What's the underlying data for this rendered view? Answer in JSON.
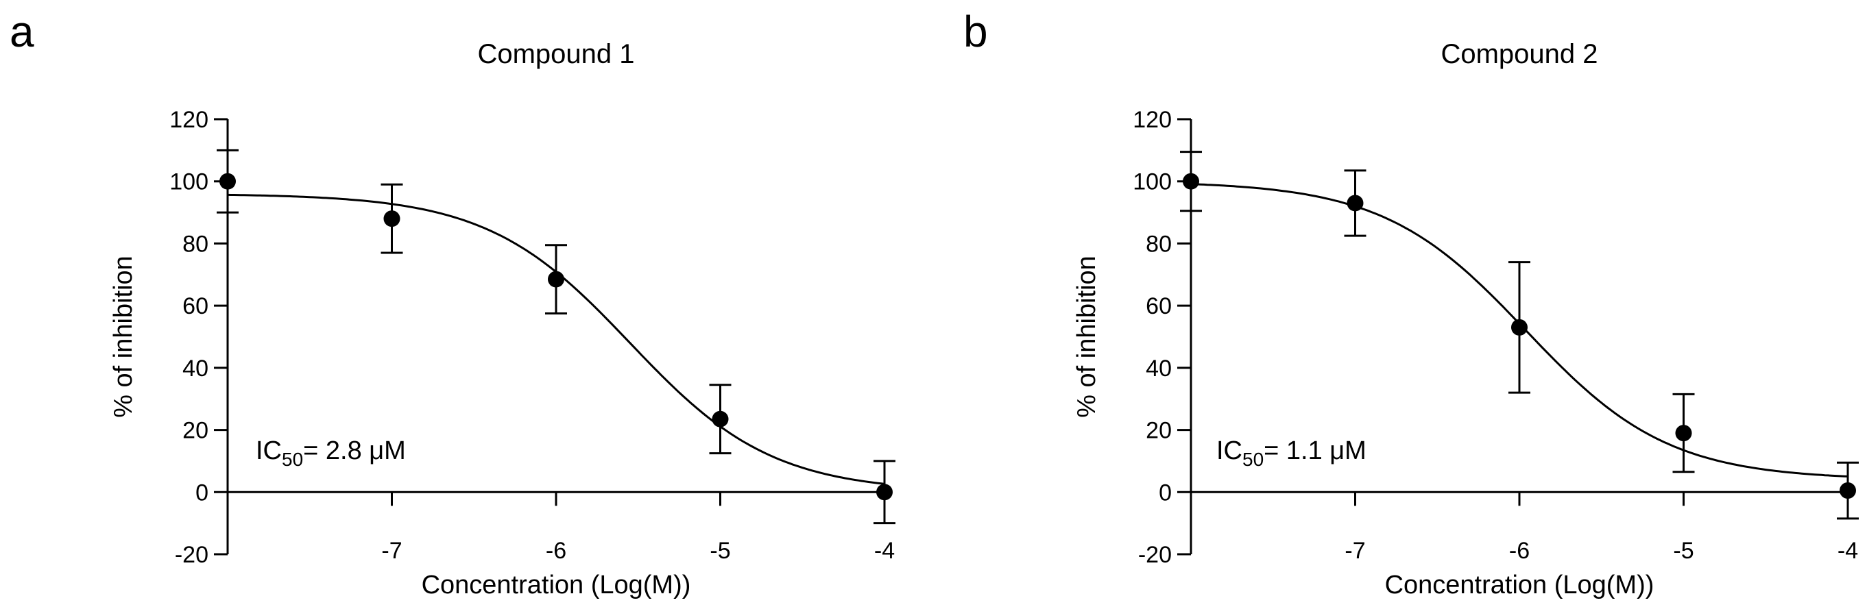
{
  "chart_data": [
    {
      "type": "scatter",
      "panel_label": "a",
      "title": "Compound 1",
      "xlabel": "Concentration (Log(M))",
      "ylabel": "% of inhibition",
      "xlim": [
        -8,
        -4
      ],
      "ylim": [
        -20,
        120
      ],
      "x_ticks": [
        -7,
        -6,
        -5,
        -4
      ],
      "y_ticks": [
        -20,
        0,
        20,
        40,
        60,
        80,
        100,
        120
      ],
      "annotation": {
        "prefix": "IC",
        "subscript": "50",
        "text": "= 2.8 μM"
      },
      "points": [
        {
          "x": -8,
          "y": 100,
          "err": 10
        },
        {
          "x": -7,
          "y": 88,
          "err": 11
        },
        {
          "x": -6,
          "y": 68.5,
          "err": 11
        },
        {
          "x": -5,
          "y": 23.5,
          "err": 11
        },
        {
          "x": -4,
          "y": 0,
          "err": 10
        }
      ],
      "fit": {
        "top": 96,
        "bottom": 0,
        "log_ic50": -5.55,
        "hill": 1
      }
    },
    {
      "type": "scatter",
      "panel_label": "b",
      "title": "Compound 2",
      "xlabel": "Concentration (Log(M))",
      "ylabel": "% of inhibition",
      "xlim": [
        -8,
        -4
      ],
      "ylim": [
        -20,
        120
      ],
      "x_ticks": [
        -7,
        -6,
        -5,
        -4
      ],
      "y_ticks": [
        -20,
        0,
        20,
        40,
        60,
        80,
        100,
        120
      ],
      "annotation": {
        "prefix": "IC",
        "subscript": "50",
        "text": "= 1.1 μM"
      },
      "points": [
        {
          "x": -8,
          "y": 100,
          "err": 9.5
        },
        {
          "x": -7,
          "y": 93,
          "err": 10.5
        },
        {
          "x": -6,
          "y": 53,
          "err": 21
        },
        {
          "x": -5,
          "y": 19,
          "err": 12.5
        },
        {
          "x": -4,
          "y": 0.5,
          "err": 9
        }
      ],
      "fit": {
        "top": 100,
        "bottom": 4,
        "log_ic50": -5.96,
        "hill": 1
      }
    }
  ]
}
